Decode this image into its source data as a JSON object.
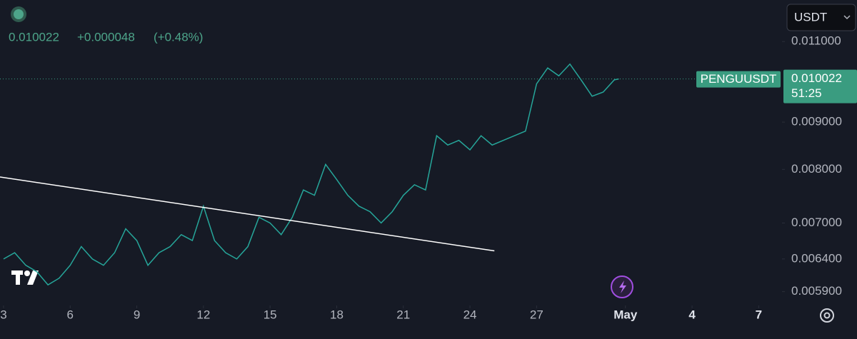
{
  "chart_data": {
    "type": "line",
    "log_scale": true,
    "currency": "USDT",
    "symbol": "PENGUUSDT",
    "header": {
      "price": "0.010022",
      "change": "+0.000048",
      "change_pct": "(+0.48%)"
    },
    "last_price": 0.010022,
    "countdown": "51:25",
    "xlim": [
      2.84,
      38.05
    ],
    "xticks": [
      3,
      6,
      9,
      12,
      15,
      18,
      21,
      24,
      27,
      {
        "value": 31,
        "label": "May"
      },
      {
        "value": 34,
        "label": "4"
      },
      {
        "value": 37,
        "label": "7"
      }
    ],
    "ylim": [
      0.0057,
      0.0122
    ],
    "yticks": [
      {
        "value": 0.0059,
        "label": "0.005900"
      },
      {
        "value": 0.0064,
        "label": "0.006400"
      },
      {
        "value": 0.007,
        "label": "0.007000"
      },
      {
        "value": 0.008,
        "label": "0.008000"
      },
      {
        "value": 0.009,
        "label": "0.009000"
      },
      {
        "value": 0.011,
        "label": "0.011000"
      }
    ],
    "x": [
      3,
      3.5,
      4,
      4.5,
      5,
      5.5,
      6,
      6.5,
      7,
      7.5,
      8,
      8.5,
      9,
      9.5,
      10,
      10.5,
      11,
      11.5,
      12,
      12.5,
      13,
      13.5,
      14,
      14.5,
      15,
      15.5,
      16,
      16.5,
      17,
      17.5,
      18,
      18.5,
      19,
      19.5,
      20,
      20.5,
      21,
      21.5,
      22,
      22.5,
      23,
      23.5,
      24,
      24.5,
      25,
      25.5,
      26,
      26.5,
      27,
      27.5,
      28,
      28.5,
      29,
      29.5,
      30,
      30.5,
      30.7
    ],
    "series": [
      {
        "color": "#26a69a",
        "values": [
          0.0064,
          0.0065,
          0.0063,
          0.0062,
          0.006,
          0.0061,
          0.0063,
          0.0066,
          0.0064,
          0.0063,
          0.0065,
          0.0069,
          0.0067,
          0.0063,
          0.0065,
          0.0066,
          0.0068,
          0.0067,
          0.0073,
          0.0067,
          0.0065,
          0.0064,
          0.0066,
          0.0071,
          0.007,
          0.0068,
          0.0071,
          0.0076,
          0.0075,
          0.0081,
          0.0078,
          0.0075,
          0.0073,
          0.0072,
          0.007,
          0.0072,
          0.0075,
          0.0077,
          0.0076,
          0.0087,
          0.0085,
          0.0086,
          0.0084,
          0.0087,
          0.0085,
          0.0086,
          0.0087,
          0.0088,
          0.0099,
          0.0103,
          0.0101,
          0.0104,
          0.01,
          0.0096,
          0.0097,
          0.01,
          0.010022
        ]
      }
    ],
    "trendline": {
      "x": [
        2.84,
        25.1
      ],
      "values": [
        0.00785,
        0.00653
      ],
      "color": "#ffffff"
    }
  }
}
